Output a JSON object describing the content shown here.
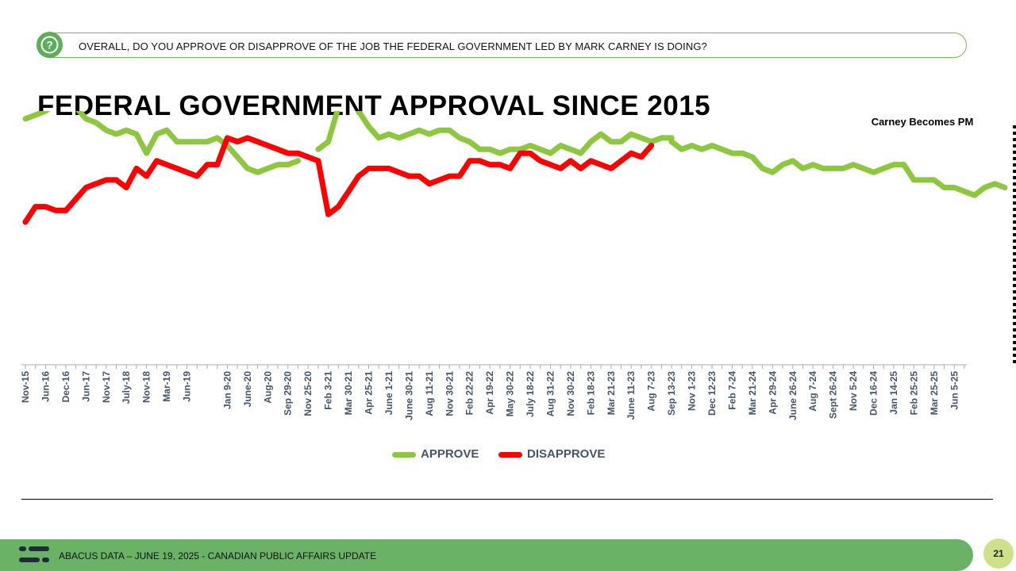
{
  "question": {
    "icon": "question-circle-icon",
    "text": "OVERALL, DO YOU APPROVE OR DISAPPROVE OF THE JOB THE FEDERAL GOVERNMENT LED BY MARK CARNEY IS DOING?"
  },
  "chart_data": {
    "type": "line",
    "title": "FEDERAL GOVERNMENT APPROVAL SINCE 2015",
    "annotation": "Carney Becomes PM",
    "annotation_at_index": 98,
    "grid": false,
    "legend_position": "bottom",
    "colors": {
      "approve": "#8dc63f",
      "disapprove": "#ff0000",
      "axis_label": "#44546a",
      "annotation_line": "#000000"
    },
    "y_range": [
      0,
      100
    ],
    "categories": [
      "Nov-15",
      "Jun-16",
      "Dec-16",
      "Jun-17",
      "Nov-17",
      "July-18",
      "Nov-18",
      "Mar-19",
      "Jun-19",
      "Jan 9-20",
      "June-20",
      "Aug-20",
      "Sep 29-20",
      "Nov 25-20",
      "Feb 3-21",
      "Mar 30-21",
      "Apr 25-21",
      "June 1-21",
      "June 30-21",
      "Aug 11-21",
      "Nov 30-21",
      "Feb 22-22",
      "Apr 19-22",
      "May 30-22",
      "July 18-22",
      "Aug 31-22",
      "Nov 30-22",
      "Feb 18-23",
      "Mar 21-23",
      "June 11-23",
      "Aug 7-23",
      "Sep 13-23",
      "Nov 1-23",
      "Dec 12-23",
      "Feb 7-24",
      "Mar 21-24",
      "Apr 29-24",
      "June 26-24",
      "Aug 7-24",
      "Sept 26-24",
      "Nov 5-24",
      "Dec 16-24",
      "Jan 14-25",
      "Feb 25-25",
      "Mar 25-25",
      "Jun 5-25"
    ],
    "category_index": [
      0,
      2,
      4,
      6,
      8,
      10,
      12,
      14,
      16,
      20,
      22,
      24,
      26,
      28,
      30,
      32,
      34,
      36,
      38,
      40,
      42,
      44,
      46,
      48,
      50,
      52,
      54,
      56,
      58,
      60,
      62,
      64,
      66,
      68,
      70,
      72,
      74,
      76,
      78,
      80,
      82,
      84,
      86,
      88,
      90,
      92
    ],
    "x_count": 94,
    "series": [
      {
        "name": "APPROVE",
        "values": [
          [
            0,
            60
          ],
          [
            1,
            61
          ],
          [
            2,
            62
          ],
          [
            3,
            64
          ],
          [
            4,
            65
          ],
          [
            5,
            63
          ],
          [
            6,
            60
          ],
          [
            7,
            59
          ],
          [
            8,
            57
          ],
          [
            9,
            56
          ],
          [
            10,
            57
          ],
          [
            11,
            56
          ],
          [
            12,
            51
          ],
          [
            13,
            56
          ],
          [
            14,
            57
          ],
          [
            15,
            54
          ],
          [
            16,
            54
          ],
          [
            17,
            54
          ],
          [
            18,
            54
          ],
          [
            19,
            55
          ],
          [
            20,
            53
          ],
          [
            21,
            50
          ],
          [
            22,
            47
          ],
          [
            23,
            46
          ],
          [
            24,
            47
          ],
          [
            25,
            48
          ],
          [
            26,
            48
          ],
          [
            27,
            49
          ],
          [
            29,
            52
          ],
          [
            30,
            54
          ],
          [
            31,
            63
          ],
          [
            32,
            66
          ],
          [
            33,
            62
          ],
          [
            34,
            58
          ],
          [
            35,
            55
          ],
          [
            36,
            56
          ],
          [
            37,
            55
          ],
          [
            38,
            56
          ],
          [
            39,
            57
          ],
          [
            40,
            56
          ],
          [
            41,
            57
          ],
          [
            42,
            57
          ],
          [
            43,
            55
          ],
          [
            44,
            54
          ],
          [
            45,
            52
          ],
          [
            46,
            52
          ],
          [
            47,
            51
          ],
          [
            48,
            52
          ],
          [
            49,
            52
          ],
          [
            50,
            53
          ],
          [
            51,
            52
          ],
          [
            52,
            51
          ],
          [
            53,
            53
          ],
          [
            54,
            52
          ],
          [
            55,
            51
          ],
          [
            56,
            54
          ],
          [
            57,
            56
          ],
          [
            58,
            54
          ],
          [
            59,
            54
          ],
          [
            60,
            56
          ],
          [
            61,
            55
          ],
          [
            62,
            54
          ],
          [
            63,
            55
          ],
          [
            64,
            55
          ],
          [
            64,
            54
          ],
          [
            65,
            52
          ],
          [
            66,
            53
          ],
          [
            67,
            52
          ],
          [
            68,
            53
          ],
          [
            69,
            52
          ],
          [
            70,
            51
          ],
          [
            71,
            51
          ],
          [
            72,
            50
          ],
          [
            73,
            47
          ],
          [
            74,
            46
          ],
          [
            75,
            48
          ],
          [
            76,
            49
          ],
          [
            77,
            47
          ],
          [
            78,
            48
          ],
          [
            79,
            47
          ],
          [
            80,
            47
          ],
          [
            81,
            47
          ],
          [
            82,
            48
          ],
          [
            83,
            47
          ],
          [
            84,
            46
          ],
          [
            85,
            47
          ],
          [
            86,
            48
          ],
          [
            87,
            48
          ],
          [
            88,
            44
          ],
          [
            89,
            44
          ],
          [
            90,
            44
          ],
          [
            91,
            42
          ],
          [
            92,
            42
          ],
          [
            93,
            41
          ],
          [
            94,
            40
          ],
          [
            95,
            42
          ],
          [
            96,
            43
          ],
          [
            97,
            42
          ]
        ]
      },
      {
        "name": "DISAPPROVE",
        "values": [
          [
            0,
            33
          ],
          [
            1,
            37
          ],
          [
            2,
            37
          ],
          [
            3,
            36
          ],
          [
            4,
            36
          ],
          [
            5,
            39
          ],
          [
            6,
            42
          ],
          [
            7,
            43
          ],
          [
            8,
            44
          ],
          [
            9,
            44
          ],
          [
            10,
            42
          ],
          [
            11,
            47
          ],
          [
            12,
            45
          ],
          [
            13,
            49
          ],
          [
            14,
            48
          ],
          [
            15,
            47
          ],
          [
            16,
            46
          ],
          [
            17,
            45
          ],
          [
            18,
            48
          ],
          [
            19,
            48
          ],
          [
            20,
            55
          ],
          [
            21,
            54
          ],
          [
            22,
            55
          ],
          [
            23,
            54
          ],
          [
            24,
            53
          ],
          [
            25,
            52
          ],
          [
            26,
            51
          ],
          [
            27,
            51
          ],
          [
            28,
            50
          ],
          [
            29,
            49
          ],
          [
            30,
            35
          ],
          [
            31,
            37
          ],
          [
            32,
            41
          ],
          [
            33,
            45
          ],
          [
            34,
            47
          ],
          [
            35,
            47
          ],
          [
            36,
            47
          ],
          [
            37,
            46
          ],
          [
            38,
            45
          ],
          [
            39,
            45
          ],
          [
            40,
            43
          ],
          [
            41,
            44
          ],
          [
            42,
            45
          ],
          [
            43,
            45
          ],
          [
            44,
            49
          ],
          [
            45,
            49
          ],
          [
            46,
            48
          ],
          [
            47,
            48
          ],
          [
            48,
            47
          ],
          [
            49,
            51
          ],
          [
            50,
            51
          ],
          [
            51,
            49
          ],
          [
            52,
            48
          ],
          [
            53,
            47
          ],
          [
            54,
            49
          ],
          [
            55,
            47
          ],
          [
            56,
            49
          ],
          [
            57,
            48
          ],
          [
            58,
            47
          ],
          [
            59,
            49
          ],
          [
            60,
            51
          ],
          [
            61,
            50
          ],
          [
            62,
            53
          ]
        ]
      }
    ]
  },
  "legend": {
    "approve_label": "APPROVE",
    "disapprove_label": "DISAPPROVE"
  },
  "footer": {
    "logo_icon": "abacus-logo-icon",
    "text": "ABACUS DATA – JUNE 19, 2025 - CANADIAN PUBLIC AFFAIRS UPDATE",
    "page_number": "21"
  }
}
